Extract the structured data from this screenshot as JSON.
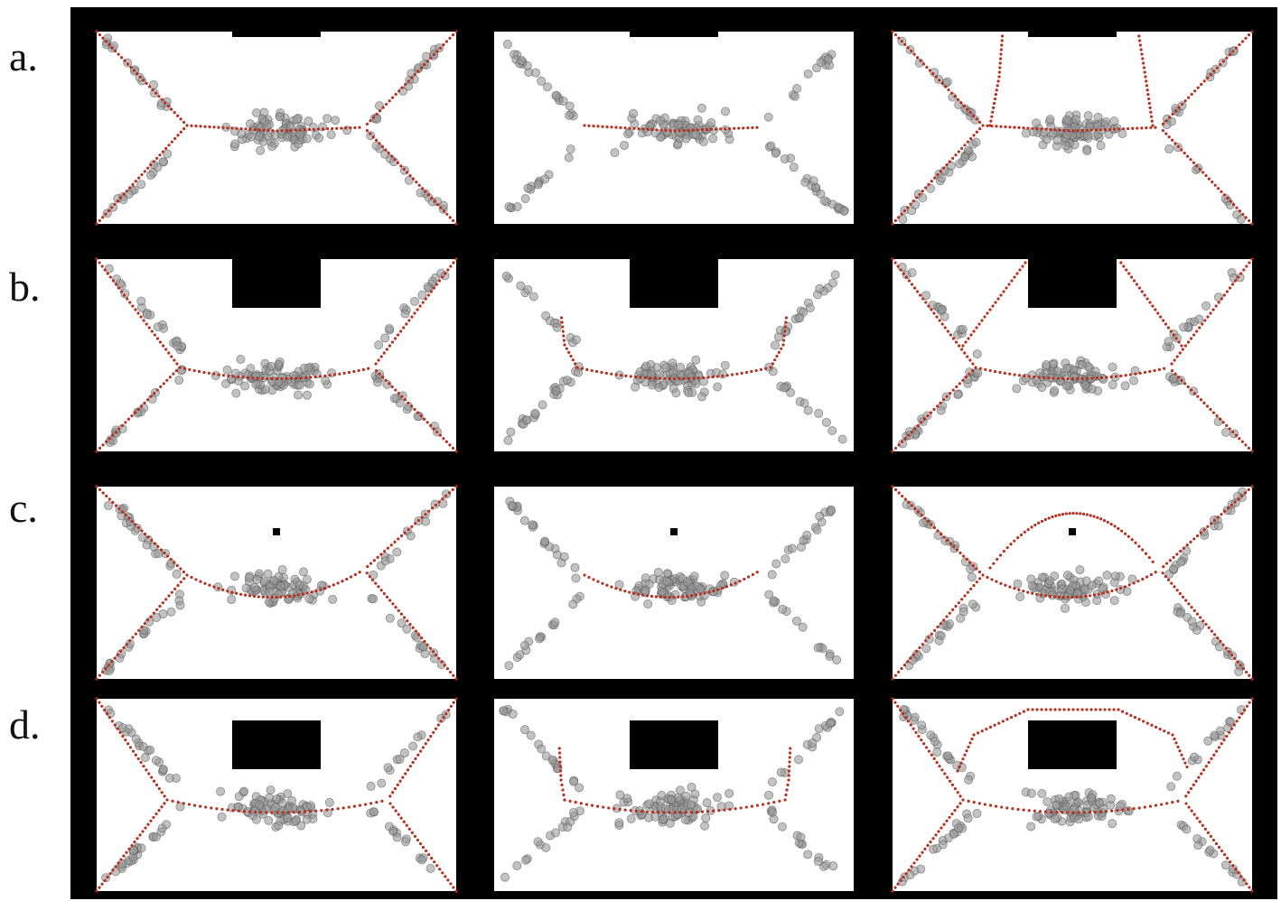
{
  "row_labels": [
    "a.",
    "b.",
    "c.",
    "d."
  ],
  "colors": {
    "background_frame": "#000000",
    "panel_fill": "#ffffff",
    "point_fill": "#9a9a9a",
    "point_stroke": "#555555",
    "curve_color": "#b5301f",
    "obstacle_fill": "#000000"
  },
  "rows": [
    {
      "obstacle": "notch-top-small"
    },
    {
      "obstacle": "notch-top-deep"
    },
    {
      "obstacle": "small-square"
    },
    {
      "obstacle": "floating-rectangle"
    }
  ],
  "columns": [
    {
      "curve": "full-skeleton-with-corner-branches"
    },
    {
      "curve": "main-branch-only"
    },
    {
      "curve": "skeleton-with-loop-around-obstacle"
    }
  ]
}
